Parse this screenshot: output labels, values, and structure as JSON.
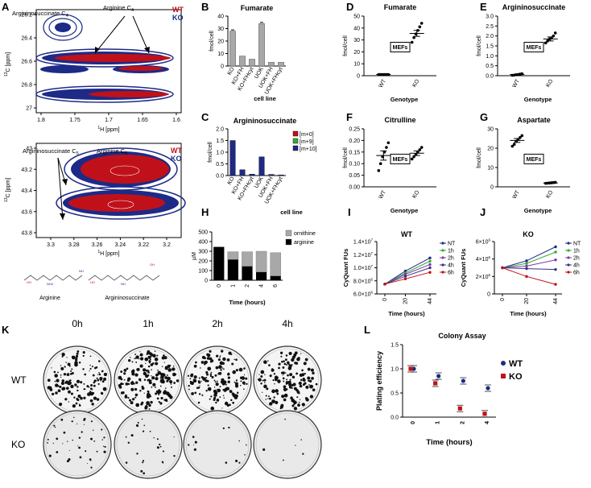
{
  "figure": {
    "panel_letters": {
      "A": "A",
      "B": "B",
      "C": "C",
      "D": "D",
      "E": "E",
      "F": "F",
      "G": "G",
      "H": "H",
      "I": "I",
      "J": "J",
      "K": "K",
      "L": "L"
    },
    "colors": {
      "wt_red": "#c0111a",
      "ko_blue": "#1d2a87",
      "gray": "#a8a8a8",
      "green": "#39a935"
    }
  },
  "panel_a": {
    "top": {
      "ann_left": "Argininosuccinate C",
      "ann_left_sub": "4",
      "ann_right": "Arginine C",
      "ann_right_sub": "4",
      "legend_wt": "WT",
      "legend_ko": "KO",
      "yticks": [
        "26.2",
        "26.4",
        "26.6",
        "26.8",
        "27"
      ],
      "xticks": [
        "1.8",
        "1.75",
        "1.7",
        "1.65",
        "1.6"
      ],
      "ylabel_sup": "13",
      "ylabel": "C [ppm]",
      "xlabel_sup": "1",
      "xlabel": "H [ppm]"
    },
    "bottom": {
      "ann_left": "Argininosuccinate C",
      "ann_left_sub": "5",
      "ann_right": "Arginine C",
      "ann_right_sub": "5",
      "legend_wt": "WT",
      "legend_ko": "KO",
      "yticks": [
        "43",
        "43.2",
        "43.4",
        "43.6",
        "43.8"
      ],
      "xticks": [
        "3.3",
        "3.28",
        "3.26",
        "3.24",
        "3.22",
        "3.2"
      ],
      "ylabel_sup": "13",
      "ylabel": "C [ppm]",
      "xlabel_sup": "1",
      "xlabel": "H [ppm]"
    },
    "structures": {
      "left": "Arginine",
      "right": "Argininosuccinate"
    }
  },
  "chart_data": [
    {
      "id": "B",
      "type": "bar",
      "title": "Fumarate",
      "ylabel": "fmol/cell",
      "xlabel": "cell line",
      "categories": [
        "KO",
        "KO+FH",
        "KO+FHcyt",
        "UOK",
        "UOK+FH",
        "UOK+FHcyt"
      ],
      "values": [
        28,
        8,
        5.5,
        34,
        3,
        3
      ],
      "ylim": [
        0,
        40
      ],
      "yticks": [
        0,
        10,
        20,
        30,
        40
      ]
    },
    {
      "id": "C",
      "type": "bar",
      "title": "Argininosuccinate",
      "ylabel": "fmol/cell",
      "xlabel": "cell line",
      "categories": [
        "KO",
        "KO+FH",
        "KO+FHcyt",
        "UOK",
        "UOK+FH",
        "UOK+FHcyt"
      ],
      "series": [
        {
          "name": "[m+0]",
          "values": [
            0,
            0,
            0,
            0,
            0,
            0
          ]
        },
        {
          "name": "[m+9]",
          "values": [
            0,
            0,
            0,
            0,
            0,
            0
          ]
        },
        {
          "name": "[m+10]",
          "values": [
            1.5,
            0.25,
            0.06,
            0.8,
            0.05,
            0.03
          ]
        }
      ],
      "ylim": [
        0,
        2.0
      ],
      "yticks": [
        0.0,
        0.5,
        1.0,
        1.5,
        2.0
      ]
    },
    {
      "id": "D",
      "type": "scatter",
      "title": "Fumarate",
      "ylabel": "fmol/cell",
      "xlabel": "Genotype",
      "box": "MEFs",
      "categories": [
        "WT",
        "KO"
      ],
      "points": [
        [
          1,
          1,
          1,
          1,
          1,
          1
        ],
        [
          28,
          32,
          35,
          38,
          41,
          44
        ]
      ],
      "means": [
        1,
        35.5
      ],
      "sems": [
        0.3,
        2.5
      ],
      "ylim": [
        0,
        50
      ],
      "yticks": [
        0,
        10,
        20,
        30,
        40,
        50
      ]
    },
    {
      "id": "E",
      "type": "scatter",
      "title": "Argininosuccinate",
      "ylabel": "fmol/cell",
      "xlabel": "Genotype",
      "box": "MEFs",
      "categories": [
        "WT",
        "KO"
      ],
      "points": [
        [
          0.02,
          0.03,
          0.05,
          0.06,
          0.08,
          0.1
        ],
        [
          1.65,
          1.75,
          1.85,
          1.9,
          2.0,
          2.15
        ]
      ],
      "means": [
        0.06,
        1.85
      ],
      "sems": [
        0.02,
        0.1
      ],
      "ylim": [
        0,
        3.0
      ],
      "yticks": [
        0.0,
        0.5,
        1.0,
        1.5,
        2.0,
        2.5,
        3.0
      ]
    },
    {
      "id": "F",
      "type": "scatter",
      "title": "Citrulline",
      "ylabel": "fmol/cell",
      "xlabel": "Genotype",
      "box": "MEFs",
      "categories": [
        "WT",
        "KO"
      ],
      "points": [
        [
          0.07,
          0.1,
          0.13,
          0.15,
          0.17,
          0.19
        ],
        [
          0.12,
          0.13,
          0.14,
          0.15,
          0.16,
          0.17
        ]
      ],
      "means": [
        0.135,
        0.145
      ],
      "sems": [
        0.02,
        0.01
      ],
      "ylim": [
        0,
        0.25
      ],
      "yticks": [
        0.0,
        0.05,
        0.1,
        0.15,
        0.2,
        0.25
      ]
    },
    {
      "id": "G",
      "type": "scatter",
      "title": "Aspartate",
      "ylabel": "fmol/cell",
      "xlabel": "Genotype",
      "box": "MEFs",
      "categories": [
        "WT",
        "KO"
      ],
      "points": [
        [
          21,
          22,
          23.5,
          24.5,
          25.5,
          26.5
        ],
        [
          1.8,
          1.9,
          2,
          2.1,
          2.2,
          2.3
        ]
      ],
      "means": [
        24,
        2
      ],
      "sems": [
        1,
        0.2
      ],
      "ylim": [
        0,
        30
      ],
      "yticks": [
        0,
        10,
        20,
        30
      ]
    },
    {
      "id": "H",
      "type": "bar",
      "stacked": true,
      "ylabel": "µM",
      "xlabel": "Time (hours)",
      "categories": [
        "0",
        "1",
        "2",
        "4",
        "6"
      ],
      "series": [
        {
          "name": "ornithine",
          "values": [
            0,
            80,
            150,
            215,
            240
          ]
        },
        {
          "name": "arginine",
          "values": [
            345,
            215,
            145,
            85,
            45
          ]
        }
      ],
      "ylim": [
        0,
        500
      ],
      "yticks": [
        0,
        100,
        200,
        300,
        400,
        500
      ]
    },
    {
      "id": "I",
      "type": "line",
      "title": "WT",
      "ylabel": "CyQuant FUs",
      "xlabel": "Time (hours)",
      "x": [
        0,
        20,
        44
      ],
      "xticks": [
        "0",
        "20",
        "44"
      ],
      "series": [
        {
          "name": "NT",
          "values": [
            7500000.0,
            9500000.0,
            11500000.0
          ]
        },
        {
          "name": "1h",
          "values": [
            7500000.0,
            9200000.0,
            11000000.0
          ]
        },
        {
          "name": "2h",
          "values": [
            7500000.0,
            9000000.0,
            10500000.0
          ]
        },
        {
          "name": "4h",
          "values": [
            7500000.0,
            8700000.0,
            10000000.0
          ]
        },
        {
          "name": "6h",
          "values": [
            7500000.0,
            8300000.0,
            9300000.0
          ]
        }
      ],
      "ylim": [
        6000000.0,
        14000000.0
      ],
      "ytick_vals": [
        6000000.0,
        8000000.0,
        10000000.0,
        12000000.0,
        14000000.0
      ],
      "ytick_mant": [
        "6.0",
        "8.0",
        "1.0",
        "1.2",
        "1.4"
      ],
      "ytick_exp": [
        "6",
        "6",
        "7",
        "7",
        "7"
      ]
    },
    {
      "id": "J",
      "type": "line",
      "title": "KO",
      "ylabel": "CyQuant FUs",
      "xlabel": "Time (hours)",
      "x": [
        0,
        20,
        44
      ],
      "xticks": [
        "0",
        "20",
        "44"
      ],
      "series": [
        {
          "name": "NT",
          "values": [
            3000000.0,
            3800000.0,
            5400000.0
          ]
        },
        {
          "name": "1h",
          "values": [
            3000000.0,
            3500000.0,
            4800000.0
          ]
        },
        {
          "name": "2h",
          "values": [
            3000000.0,
            3200000.0,
            3900000.0
          ]
        },
        {
          "name": "4h",
          "values": [
            3000000.0,
            2900000.0,
            2800000.0
          ]
        },
        {
          "name": "6h",
          "values": [
            3000000.0,
            2000000.0,
            1100000.0
          ]
        }
      ],
      "ylim": [
        0,
        6000000.0
      ],
      "ytick_vals": [
        0,
        2000000.0,
        4000000.0,
        6000000.0
      ],
      "ytick_mant": [
        "0",
        "2",
        "4",
        "6"
      ],
      "ytick_exp": [
        "",
        "6",
        "6",
        "6"
      ]
    },
    {
      "id": "L",
      "type": "scatter",
      "title": "Colony Assay",
      "ylabel": "Plating efficiency",
      "xlabel": "Time (hours)",
      "categories": [
        "0",
        "1",
        "2",
        "4"
      ],
      "series": [
        {
          "name": "WT",
          "values": [
            1.0,
            0.85,
            0.75,
            0.6
          ]
        },
        {
          "name": "KO",
          "values": [
            1.0,
            0.7,
            0.18,
            0.07
          ]
        }
      ],
      "ylim": [
        0,
        1.5
      ],
      "yticks": [
        0.0,
        0.5,
        1.0,
        1.5
      ]
    }
  ],
  "panel_k": {
    "columns": [
      "0h",
      "1h",
      "2h",
      "4h"
    ],
    "rows": [
      "WT",
      "KO"
    ]
  }
}
